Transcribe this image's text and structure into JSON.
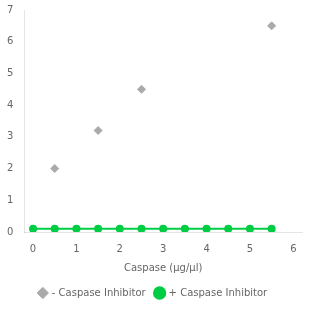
{
  "chart_data": {
    "type": "scatter",
    "xlabel": "Caspase (µg/µl)",
    "xlim": [
      -0.2,
      6.2
    ],
    "xticks": [
      0,
      1,
      2,
      3,
      4,
      5,
      6
    ],
    "ylim": [
      0,
      7
    ],
    "yticks": [
      0,
      1,
      2,
      3,
      4,
      5,
      6,
      7
    ],
    "grid": false,
    "legend": "bottom",
    "series": [
      {
        "name": "- Caspase Inhibitor",
        "type": "scatter",
        "color": "#aaaaaa",
        "marker": "diamond",
        "x": [
          0.5,
          1.5,
          2.5,
          5.5
        ],
        "values": [
          2.0,
          3.2,
          4.5,
          6.5
        ]
      },
      {
        "name": "+ Caspase Inhibitor",
        "type": "line",
        "color": "#00cc44",
        "marker": "circle",
        "line_style": "solid",
        "x": [
          0.0,
          0.5,
          1.0,
          1.5,
          2.0,
          2.5,
          3.0,
          3.5,
          4.0,
          4.5,
          5.0,
          5.5
        ],
        "values": [
          0.1,
          0.1,
          0.1,
          0.1,
          0.1,
          0.1,
          0.1,
          0.1,
          0.1,
          0.1,
          0.1,
          0.1
        ]
      }
    ]
  }
}
